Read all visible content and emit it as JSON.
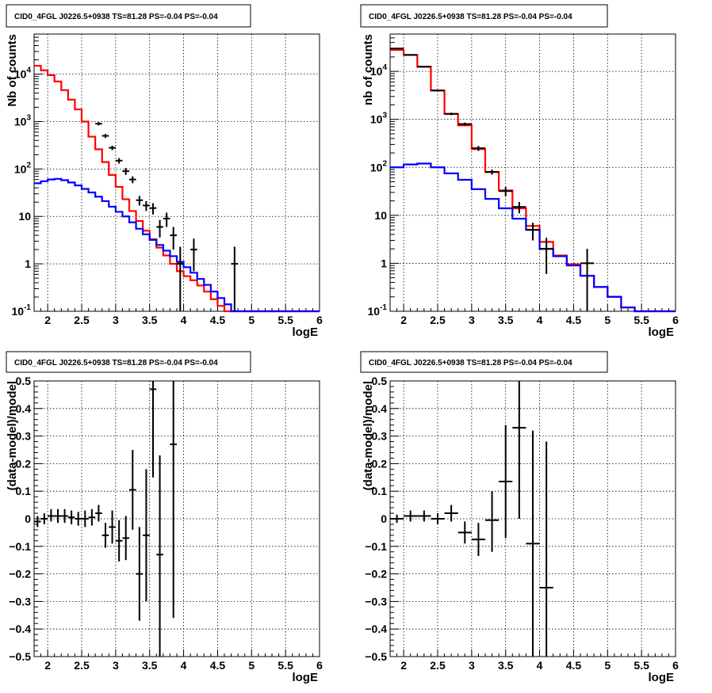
{
  "chart_data": [
    {
      "type": "histogram",
      "title": "CID0_4FGL J0226.5+0938 TS=81.28 PS=-0.04 PS=-0.04",
      "xlabel": "logE",
      "ylabel": "Nb of counts",
      "xlim": [
        1.8,
        6.0
      ],
      "ylim": [
        0.1,
        70000
      ],
      "yscale": "log",
      "grid": true,
      "x_ticks": [
        "2",
        "2.5",
        "3",
        "3.5",
        "4",
        "4.5",
        "5",
        "5.5",
        "6"
      ],
      "x_tick_values": [
        2,
        2.5,
        3,
        3.5,
        4,
        4.5,
        5,
        5.5,
        6
      ],
      "y_ticks": [
        "10^-1",
        "1",
        "10",
        "10^2",
        "10^3",
        "10^4"
      ],
      "y_tick_values": [
        0.1,
        1,
        10,
        100,
        1000,
        10000
      ],
      "bin_edges": [
        1.8,
        1.9,
        2.0,
        2.1,
        2.2,
        2.3,
        2.4,
        2.5,
        2.6,
        2.7,
        2.8,
        2.9,
        3.0,
        3.1,
        3.2,
        3.3,
        3.4,
        3.5,
        3.6,
        3.7,
        3.8,
        3.9,
        4.0,
        4.1,
        4.2,
        4.3,
        4.4,
        4.5,
        4.6,
        4.7,
        4.8,
        4.9,
        5.0,
        5.1,
        5.2,
        5.3,
        5.4,
        5.5,
        5.6,
        5.7,
        5.8,
        5.9,
        6.0
      ],
      "series": [
        {
          "color": "#ff0000",
          "values": [
            15000,
            12000,
            9500,
            7000,
            4600,
            2900,
            1800,
            1000,
            480,
            260,
            140,
            75,
            42,
            23,
            13,
            8,
            5,
            3.3,
            2.2,
            1.5,
            1.0,
            0.7,
            0.55,
            0.45,
            0.35,
            0.26,
            0.18,
            0.13,
            0.1,
            0.1,
            0.1,
            0.1,
            0.1,
            0.1,
            0.1,
            0.1,
            0.1,
            0.1,
            0.1,
            0.1,
            0.1,
            0.1
          ]
        },
        {
          "color": "#0000ff",
          "values": [
            50,
            55,
            60,
            62,
            58,
            52,
            45,
            38,
            32,
            26,
            21,
            16,
            12.5,
            10,
            7.5,
            5.5,
            4.2,
            3.2,
            2.5,
            1.9,
            1.45,
            1.1,
            0.85,
            0.65,
            0.48,
            0.36,
            0.26,
            0.19,
            0.14,
            0.1,
            0.1,
            0.1,
            0.1,
            0.1,
            0.1,
            0.1,
            0.1,
            0.1,
            0.1,
            0.1,
            0.1,
            0.1
          ]
        }
      ],
      "points": [
        {
          "x": 2.75,
          "y": 900,
          "xe": 0.05,
          "lo": 830,
          "hi": 970
        },
        {
          "x": 2.85,
          "y": 500,
          "xe": 0.05,
          "lo": 450,
          "hi": 550
        },
        {
          "x": 2.95,
          "y": 280,
          "xe": 0.05,
          "lo": 250,
          "hi": 310
        },
        {
          "x": 3.05,
          "y": 150,
          "xe": 0.05,
          "lo": 130,
          "hi": 170
        },
        {
          "x": 3.15,
          "y": 90,
          "xe": 0.05,
          "lo": 75,
          "hi": 105
        },
        {
          "x": 3.25,
          "y": 60,
          "xe": 0.05,
          "lo": 50,
          "hi": 70
        },
        {
          "x": 3.35,
          "y": 22,
          "xe": 0.05,
          "lo": 17,
          "hi": 27
        },
        {
          "x": 3.45,
          "y": 17,
          "xe": 0.05,
          "lo": 13,
          "hi": 21
        },
        {
          "x": 3.55,
          "y": 15,
          "xe": 0.05,
          "lo": 11,
          "hi": 19
        },
        {
          "x": 3.65,
          "y": 6,
          "xe": 0.05,
          "lo": 3.6,
          "hi": 8.4
        },
        {
          "x": 3.75,
          "y": 9,
          "xe": 0.05,
          "lo": 6,
          "hi": 12
        },
        {
          "x": 3.85,
          "y": 4,
          "xe": 0.05,
          "lo": 2,
          "hi": 6
        },
        {
          "x": 3.95,
          "y": 1,
          "xe": 0.05,
          "lo": 0.1,
          "hi": 2.3
        },
        {
          "x": 4.15,
          "y": 2,
          "xe": 0.05,
          "lo": 0.7,
          "hi": 3.4
        },
        {
          "x": 4.75,
          "y": 1,
          "xe": 0.05,
          "lo": 0.1,
          "hi": 2.3
        }
      ]
    },
    {
      "type": "histogram",
      "title": "CID0_4FGL J0226.5+0938 TS=81.28 PS=-0.04 PS=-0.04",
      "xlabel": "logE",
      "ylabel": "nb of counts",
      "xlim": [
        1.8,
        6.0
      ],
      "ylim": [
        0.1,
        60000
      ],
      "yscale": "log",
      "grid": true,
      "x_ticks": [
        "2",
        "2.5",
        "3",
        "3.5",
        "4",
        "4.5",
        "5",
        "5.5",
        "6"
      ],
      "x_tick_values": [
        2,
        2.5,
        3,
        3.5,
        4,
        4.5,
        5,
        5.5,
        6
      ],
      "y_ticks": [
        "10^-1",
        "1",
        "10",
        "10^2",
        "10^3",
        "10^4"
      ],
      "y_tick_values": [
        0.1,
        1,
        10,
        100,
        1000,
        10000
      ],
      "bin_edges": [
        1.8,
        2.0,
        2.2,
        2.4,
        2.6,
        2.8,
        3.0,
        3.2,
        3.4,
        3.6,
        3.8,
        4.0,
        4.2,
        4.4,
        4.6,
        4.8,
        5.0,
        5.2,
        5.4,
        5.6,
        5.8,
        6.0
      ],
      "series": [
        {
          "color": "#ff0000",
          "values": [
            28000,
            22000,
            12500,
            4000,
            1300,
            750,
            240,
            80,
            33,
            14,
            6,
            2.8,
            1.45,
            0.95,
            0.55,
            0.32,
            0.2,
            0.12,
            0.1,
            0.1,
            0.1
          ]
        },
        {
          "color": "#0000ff",
          "values": [
            100,
            115,
            120,
            100,
            75,
            55,
            35,
            22,
            14,
            8.5,
            5,
            2.0,
            1.4,
            0.9,
            0.55,
            0.32,
            0.2,
            0.12,
            0.1,
            0.1,
            0.1
          ]
        }
      ],
      "points": [
        {
          "x": 1.9,
          "y": 30000,
          "xe": 0.1,
          "lo": 29000,
          "hi": 31000
        },
        {
          "x": 2.1,
          "y": 22000,
          "xe": 0.1,
          "lo": 21200,
          "hi": 22800
        },
        {
          "x": 2.3,
          "y": 12500,
          "xe": 0.1,
          "lo": 12000,
          "hi": 13000
        },
        {
          "x": 2.5,
          "y": 4000,
          "xe": 0.1,
          "lo": 3850,
          "hi": 4150
        },
        {
          "x": 2.7,
          "y": 1300,
          "xe": 0.1,
          "lo": 1220,
          "hi": 1380
        },
        {
          "x": 2.9,
          "y": 800,
          "xe": 0.1,
          "lo": 740,
          "hi": 860
        },
        {
          "x": 3.1,
          "y": 250,
          "xe": 0.1,
          "lo": 220,
          "hi": 280
        },
        {
          "x": 3.3,
          "y": 80,
          "xe": 0.1,
          "lo": 70,
          "hi": 90
        },
        {
          "x": 3.5,
          "y": 32,
          "xe": 0.1,
          "lo": 25,
          "hi": 39
        },
        {
          "x": 3.7,
          "y": 15,
          "xe": 0.1,
          "lo": 11,
          "hi": 19
        },
        {
          "x": 3.9,
          "y": 5,
          "xe": 0.1,
          "lo": 3,
          "hi": 7
        },
        {
          "x": 4.1,
          "y": 2,
          "xe": 0.1,
          "lo": 0.6,
          "hi": 3.4
        },
        {
          "x": 4.7,
          "y": 1,
          "xe": 0.1,
          "lo": 0.1,
          "hi": 2
        }
      ]
    },
    {
      "type": "scatter",
      "title": "CID0_4FGL J0226.5+0938 TS=81.28 PS=-0.04 PS=-0.04",
      "xlabel": "logE",
      "ylabel": "(data-model)/model",
      "xlim": [
        1.8,
        6.0
      ],
      "ylim": [
        -0.5,
        0.5
      ],
      "yscale": "linear",
      "grid": true,
      "x_ticks": [
        "2",
        "2.5",
        "3",
        "3.5",
        "4",
        "4.5",
        "5",
        "5.5",
        "6"
      ],
      "x_tick_values": [
        2,
        2.5,
        3,
        3.5,
        4,
        4.5,
        5,
        5.5,
        6
      ],
      "y_ticks": [
        "−0.5",
        "−0.4",
        "−0.3",
        "−0.2",
        "−0.1",
        "0",
        "0.1",
        "0.2",
        "0.3",
        "0.4",
        "0.5"
      ],
      "y_tick_values": [
        -0.5,
        -0.4,
        -0.3,
        -0.2,
        -0.1,
        0,
        0.1,
        0.2,
        0.3,
        0.4,
        0.5
      ],
      "points": [
        {
          "x": 1.85,
          "y": -0.01,
          "xe": 0.05,
          "lo": -0.03,
          "hi": 0.01
        },
        {
          "x": 1.95,
          "y": 0.0,
          "xe": 0.05,
          "lo": -0.02,
          "hi": 0.02
        },
        {
          "x": 2.05,
          "y": 0.01,
          "xe": 0.05,
          "lo": -0.01,
          "hi": 0.035
        },
        {
          "x": 2.15,
          "y": 0.01,
          "xe": 0.05,
          "lo": -0.015,
          "hi": 0.035
        },
        {
          "x": 2.25,
          "y": 0.01,
          "xe": 0.05,
          "lo": -0.015,
          "hi": 0.035
        },
        {
          "x": 2.35,
          "y": 0.005,
          "xe": 0.05,
          "lo": -0.02,
          "hi": 0.03
        },
        {
          "x": 2.45,
          "y": 0.0,
          "xe": 0.05,
          "lo": -0.025,
          "hi": 0.025
        },
        {
          "x": 2.55,
          "y": 0.0,
          "xe": 0.05,
          "lo": -0.03,
          "hi": 0.03
        },
        {
          "x": 2.65,
          "y": 0.005,
          "xe": 0.05,
          "lo": -0.025,
          "hi": 0.035
        },
        {
          "x": 2.75,
          "y": 0.02,
          "xe": 0.05,
          "lo": -0.01,
          "hi": 0.05
        },
        {
          "x": 2.85,
          "y": -0.06,
          "xe": 0.05,
          "lo": -0.105,
          "hi": -0.015
        },
        {
          "x": 2.95,
          "y": -0.03,
          "xe": 0.05,
          "lo": -0.09,
          "hi": 0.03
        },
        {
          "x": 3.05,
          "y": -0.08,
          "xe": 0.05,
          "lo": -0.155,
          "hi": -0.005
        },
        {
          "x": 3.15,
          "y": -0.07,
          "xe": 0.05,
          "lo": -0.15,
          "hi": 0.01
        },
        {
          "x": 3.25,
          "y": 0.105,
          "xe": 0.05,
          "lo": -0.04,
          "hi": 0.25
        },
        {
          "x": 3.35,
          "y": -0.2,
          "xe": 0.05,
          "lo": -0.37,
          "hi": -0.03
        },
        {
          "x": 3.45,
          "y": -0.06,
          "xe": 0.05,
          "lo": -0.3,
          "hi": 0.18
        },
        {
          "x": 3.55,
          "y": 0.47,
          "xe": 0.05,
          "lo": 0.15,
          "hi": 0.5
        },
        {
          "x": 3.65,
          "y": -0.13,
          "xe": 0.05,
          "lo": -0.5,
          "hi": 0.23
        },
        {
          "x": 3.85,
          "y": 0.27,
          "xe": 0.05,
          "lo": -0.36,
          "hi": 0.5
        }
      ]
    },
    {
      "type": "scatter",
      "title": "CID0_4FGL J0226.5+0938 TS=81.28 PS=-0.04 PS=-0.04",
      "xlabel": "logE",
      "ylabel": "(data-model)/model",
      "xlim": [
        1.8,
        6.0
      ],
      "ylim": [
        -0.5,
        0.5
      ],
      "yscale": "linear",
      "grid": true,
      "x_ticks": [
        "2",
        "2.5",
        "3",
        "3.5",
        "4",
        "4.5",
        "5",
        "5.5",
        "6"
      ],
      "x_tick_values": [
        2,
        2.5,
        3,
        3.5,
        4,
        4.5,
        5,
        5.5,
        6
      ],
      "y_ticks": [
        "−0.5",
        "−0.4",
        "−0.3",
        "−0.2",
        "−0.1",
        "0",
        "0.1",
        "0.2",
        "0.3",
        "0.4",
        "0.5"
      ],
      "y_tick_values": [
        -0.5,
        -0.4,
        -0.3,
        -0.2,
        -0.1,
        0,
        0.1,
        0.2,
        0.3,
        0.4,
        0.5
      ],
      "points": [
        {
          "x": 1.9,
          "y": 0.0,
          "xe": 0.1,
          "lo": -0.015,
          "hi": 0.015
        },
        {
          "x": 2.1,
          "y": 0.01,
          "xe": 0.1,
          "lo": -0.01,
          "hi": 0.03
        },
        {
          "x": 2.3,
          "y": 0.01,
          "xe": 0.1,
          "lo": -0.01,
          "hi": 0.03
        },
        {
          "x": 2.5,
          "y": 0.0,
          "xe": 0.1,
          "lo": -0.02,
          "hi": 0.02
        },
        {
          "x": 2.7,
          "y": 0.02,
          "xe": 0.1,
          "lo": -0.01,
          "hi": 0.05
        },
        {
          "x": 2.9,
          "y": -0.05,
          "xe": 0.1,
          "lo": -0.09,
          "hi": -0.01
        },
        {
          "x": 3.1,
          "y": -0.075,
          "xe": 0.1,
          "lo": -0.135,
          "hi": -0.015
        },
        {
          "x": 3.3,
          "y": -0.005,
          "xe": 0.1,
          "lo": -0.12,
          "hi": 0.1
        },
        {
          "x": 3.5,
          "y": 0.135,
          "xe": 0.1,
          "lo": -0.07,
          "hi": 0.34
        },
        {
          "x": 3.7,
          "y": 0.33,
          "xe": 0.1,
          "lo": 0.0,
          "hi": 0.5
        },
        {
          "x": 3.9,
          "y": -0.09,
          "xe": 0.1,
          "lo": -0.5,
          "hi": 0.32
        },
        {
          "x": 4.1,
          "y": -0.25,
          "xe": 0.1,
          "lo": -0.5,
          "hi": 0.28
        }
      ]
    }
  ]
}
